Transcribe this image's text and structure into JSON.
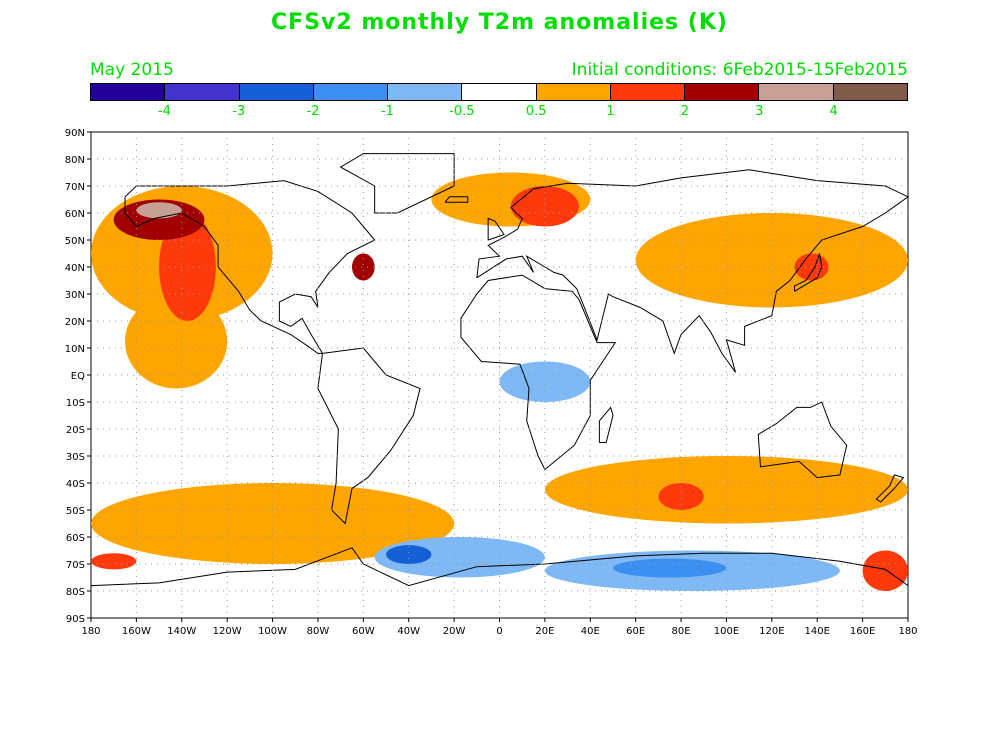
{
  "title": "CFSv2 monthly T2m anomalies (K)",
  "valid_month": "May 2015",
  "initial_conditions": "Initial conditions: 6Feb2015-15Feb2015",
  "colorbar": {
    "colors": [
      "#220099",
      "#4433cc",
      "#1560d6",
      "#3b8ff0",
      "#7eb8f5",
      "#ffffff",
      "#ffa500",
      "#ff3a0a",
      "#a00000",
      "#c8a096",
      "#805a4a"
    ],
    "labels": [
      "-4",
      "-3",
      "-2",
      "-1",
      "-0.5",
      "0.5",
      "1",
      "2",
      "3",
      "4"
    ]
  },
  "axes": {
    "lat_labels": [
      "90N",
      "80N",
      "70N",
      "60N",
      "50N",
      "40N",
      "30N",
      "20N",
      "10N",
      "EQ",
      "10S",
      "20S",
      "30S",
      "40S",
      "50S",
      "60S",
      "70S",
      "80S",
      "90S"
    ],
    "lon_labels": [
      "180",
      "160W",
      "140W",
      "120W",
      "100W",
      "80W",
      "60W",
      "40W",
      "20W",
      "0",
      "20E",
      "40E",
      "60E",
      "80E",
      "100E",
      "120E",
      "140E",
      "160E",
      "180"
    ]
  },
  "anomaly_regions": [
    {
      "lon": [
        -180,
        -100
      ],
      "lat": [
        20,
        70
      ],
      "level": "0.5"
    },
    {
      "lon": [
        -165,
        -120
      ],
      "lat": [
        -5,
        30
      ],
      "level": "0.5"
    },
    {
      "lon": [
        -150,
        -125
      ],
      "lat": [
        20,
        60
      ],
      "level": "1"
    },
    {
      "lon": [
        -170,
        -130
      ],
      "lat": [
        50,
        65
      ],
      "level": "2"
    },
    {
      "lon": [
        -160,
        -140
      ],
      "lat": [
        58,
        64
      ],
      "level": "3"
    },
    {
      "lon": [
        -65,
        -55
      ],
      "lat": [
        35,
        45
      ],
      "level": "2"
    },
    {
      "lon": [
        -30,
        40
      ],
      "lat": [
        55,
        75
      ],
      "level": "0.5"
    },
    {
      "lon": [
        5,
        35
      ],
      "lat": [
        55,
        70
      ],
      "level": "1"
    },
    {
      "lon": [
        60,
        180
      ],
      "lat": [
        25,
        60
      ],
      "level": "0.5"
    },
    {
      "lon": [
        130,
        145
      ],
      "lat": [
        35,
        45
      ],
      "level": "1"
    },
    {
      "lon": [
        -180,
        -20
      ],
      "lat": [
        -70,
        -40
      ],
      "level": "0.5"
    },
    {
      "lon": [
        20,
        180
      ],
      "lat": [
        -55,
        -30
      ],
      "level": "0.5"
    },
    {
      "lon": [
        70,
        90
      ],
      "lat": [
        -50,
        -40
      ],
      "level": "1"
    },
    {
      "lon": [
        -55,
        20
      ],
      "lat": [
        -75,
        -60
      ],
      "level": "-0.5"
    },
    {
      "lon": [
        -50,
        -30
      ],
      "lat": [
        -70,
        -63
      ],
      "level": "-2"
    },
    {
      "lon": [
        20,
        150
      ],
      "lat": [
        -80,
        -65
      ],
      "level": "-0.5"
    },
    {
      "lon": [
        50,
        100
      ],
      "lat": [
        -75,
        -68
      ],
      "level": "-1"
    },
    {
      "lon": [
        0,
        40
      ],
      "lat": [
        -10,
        5
      ],
      "level": "-0.5"
    },
    {
      "lon": [
        -180,
        -160
      ],
      "lat": [
        -72,
        -66
      ],
      "level": "1"
    },
    {
      "lon": [
        160,
        180
      ],
      "lat": [
        -80,
        -65
      ],
      "level": "1"
    }
  ]
}
